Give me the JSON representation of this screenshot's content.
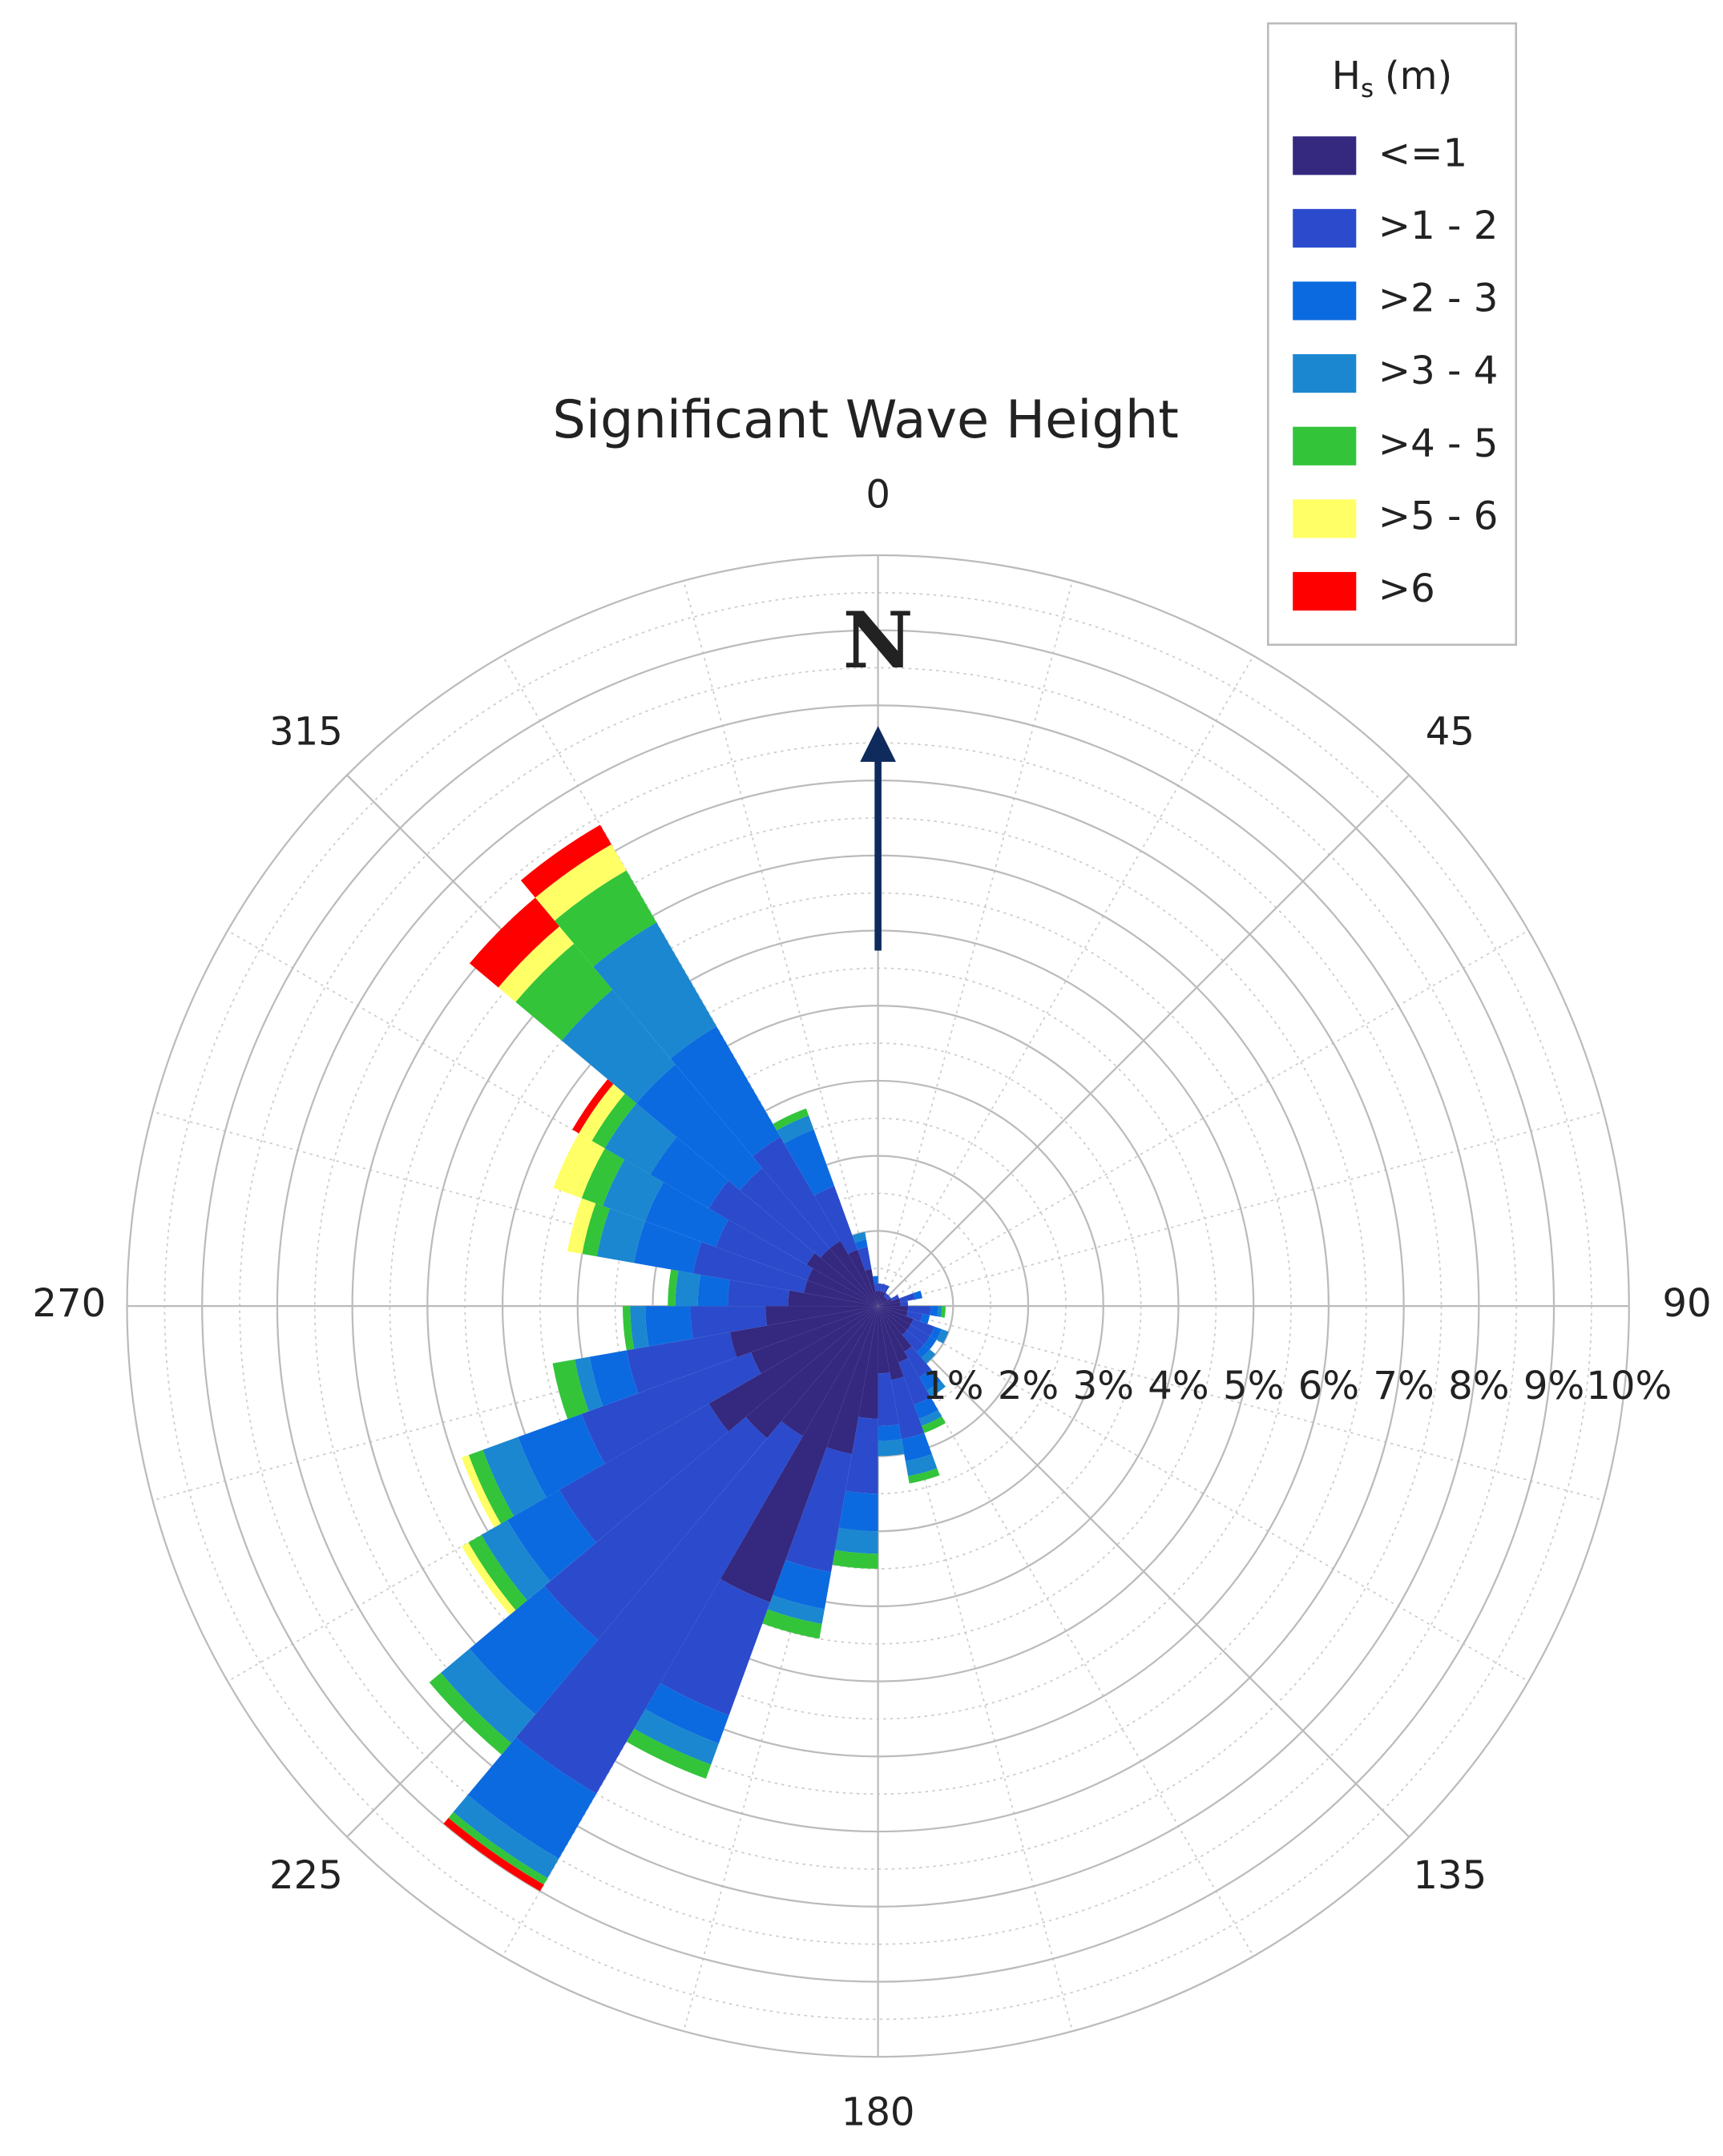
{
  "chart_data": {
    "type": "rose",
    "title": "Significant Wave Height",
    "annotation": "N",
    "legend_title": [
      "H",
      "s",
      "(m)"
    ],
    "x": [
      5,
      15,
      25,
      35,
      45,
      55,
      65,
      75,
      85,
      95,
      105,
      115,
      125,
      135,
      145,
      155,
      165,
      175,
      185,
      195,
      205,
      215,
      225,
      235,
      245,
      255,
      265,
      275,
      285,
      295,
      305,
      315,
      325,
      335,
      345,
      355
    ],
    "angle_ticks": [
      0,
      45,
      90,
      135,
      180,
      225,
      270,
      315
    ],
    "rlim": [
      0,
      10
    ],
    "rticks": [
      {
        "value": 1,
        "label": "1%"
      },
      {
        "value": 2,
        "label": "2%"
      },
      {
        "value": 3,
        "label": "3%"
      },
      {
        "value": 4,
        "label": "4%"
      },
      {
        "value": 5,
        "label": "5%"
      },
      {
        "value": 6,
        "label": "6%"
      },
      {
        "value": 7,
        "label": "7%"
      },
      {
        "value": 8,
        "label": "8%"
      },
      {
        "value": 9,
        "label": "9%"
      },
      {
        "value": 10,
        "label": "10%"
      }
    ],
    "grid": true,
    "legend": "upper right",
    "series": [
      {
        "name": "<=1",
        "color": "#35287f",
        "values": [
          0.2,
          0.2,
          0.2,
          0.15,
          0.15,
          0.15,
          0.2,
          0.3,
          0.3,
          0.4,
          0.4,
          0.5,
          0.5,
          0.5,
          0.7,
          0.8,
          1.0,
          0.9,
          1.5,
          2.0,
          4.2,
          2.0,
          2.3,
          2.6,
          1.8,
          2.0,
          1.5,
          1.2,
          1.0,
          1.0,
          1.1,
          1.0,
          1.0,
          0.8,
          0.5,
          0.2
        ]
      },
      {
        "name": ">1 - 2",
        "color": "#2b4bcc",
        "values": [
          0.1,
          0.1,
          0.1,
          0.05,
          0.05,
          0.05,
          0.1,
          0.2,
          0.1,
          0.3,
          0.2,
          0.3,
          0.3,
          0.3,
          0.4,
          0.6,
          0.8,
          0.7,
          1.0,
          1.6,
          1.6,
          5.5,
          3.5,
          2.3,
          2.4,
          1.4,
          1.0,
          0.8,
          1.5,
          1.3,
          1.5,
          1.4,
          1.6,
          0.9,
          0.3,
          0.1
        ]
      },
      {
        "name": ">2 - 3",
        "color": "#0c6ae0",
        "values": [
          0,
          0,
          0,
          0,
          0,
          0,
          0,
          0.1,
          0,
          0.1,
          0.1,
          0.1,
          0.1,
          0.1,
          0.2,
          0.2,
          0.3,
          0.2,
          0.5,
          0.5,
          0.4,
          1.0,
          1.3,
          0.8,
          0.9,
          0.5,
          0.6,
          0.4,
          0.8,
          1.0,
          0.9,
          1.8,
          1.7,
          0.8,
          0.1,
          0.1
        ]
      },
      {
        "name": ">3 - 4",
        "color": "#1b87d0",
        "values": [
          0,
          0,
          0,
          0,
          0,
          0,
          0,
          0,
          0,
          0.05,
          0,
          0.1,
          0,
          0.1,
          0.1,
          0.1,
          0.2,
          0.2,
          0.3,
          0.2,
          0.3,
          0.3,
          0.5,
          0.4,
          0.5,
          0.2,
          0.2,
          0.3,
          0.5,
          0.6,
          0.7,
          1.3,
          1.6,
          0.2,
          0.1,
          0
        ]
      },
      {
        "name": ">4 - 5",
        "color": "#33c43a",
        "values": [
          0,
          0,
          0,
          0,
          0,
          0,
          0,
          0,
          0,
          0.05,
          0,
          0,
          0,
          0,
          0,
          0.1,
          0.1,
          0,
          0.2,
          0.2,
          0.2,
          0.1,
          0.2,
          0.2,
          0.2,
          0.3,
          0.1,
          0.1,
          0.2,
          0.3,
          0.2,
          0.8,
          0.8,
          0.1,
          0,
          0
        ]
      },
      {
        "name": ">5 - 6",
        "color": "#ffff66",
        "values": [
          0,
          0,
          0,
          0,
          0,
          0,
          0,
          0,
          0,
          0,
          0,
          0,
          0,
          0,
          0,
          0,
          0,
          0,
          0,
          0,
          0,
          0,
          0,
          0.1,
          0.1,
          0,
          0,
          0,
          0.2,
          0.4,
          0.2,
          0.3,
          0.4,
          0,
          0,
          0
        ]
      },
      {
        "name": ">6",
        "color": "#ff0000",
        "values": [
          0,
          0,
          0,
          0,
          0,
          0,
          0,
          0,
          0,
          0,
          0,
          0,
          0,
          0,
          0,
          0,
          0,
          0,
          0,
          0,
          0,
          0.1,
          0,
          0,
          0,
          0,
          0,
          0,
          0,
          0,
          0.1,
          0.5,
          0.3,
          0,
          0,
          0
        ]
      }
    ]
  }
}
